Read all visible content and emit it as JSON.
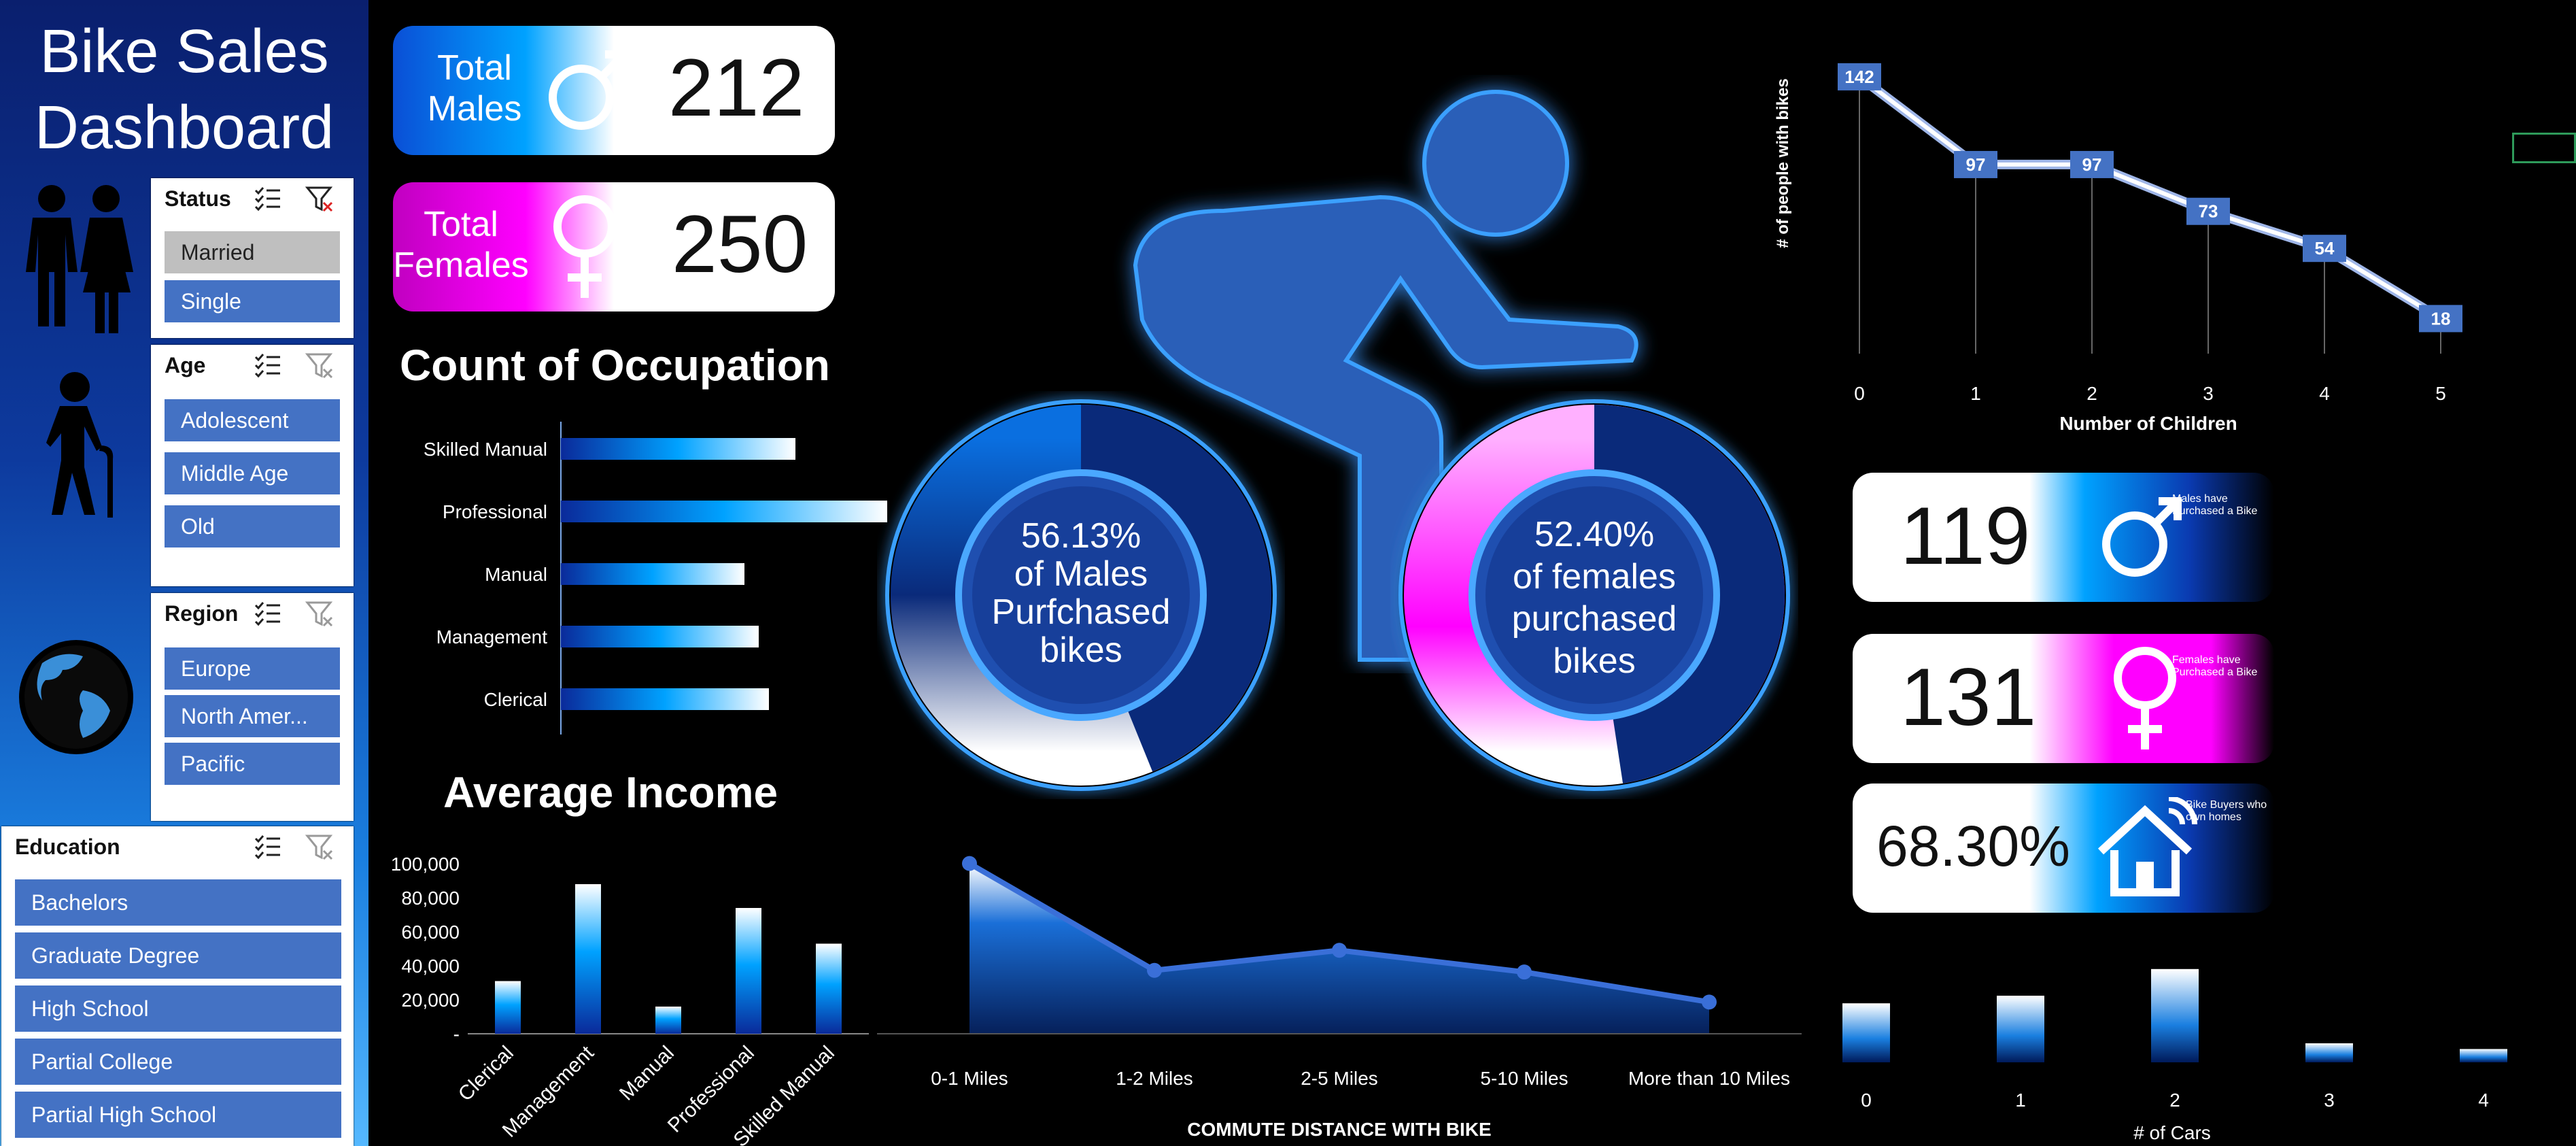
{
  "sidebar": {
    "title_line1": "Bike Sales",
    "title_line2": "Dashboard",
    "slicers": {
      "status": {
        "title": "Status",
        "items": [
          "Married",
          "Single"
        ]
      },
      "age": {
        "title": "Age",
        "items": [
          "Adolescent",
          "Middle Age",
          "Old"
        ]
      },
      "region": {
        "title": "Region",
        "items": [
          "Europe",
          "North Amer...",
          "Pacific"
        ]
      },
      "education": {
        "title": "Education",
        "items": [
          "Bachelors",
          "Graduate Degree",
          "High School",
          "Partial College",
          "Partial High School"
        ]
      }
    },
    "icons": [
      "couple-icon",
      "elderly-person-icon",
      "globe-icon"
    ]
  },
  "kpis": {
    "total_males": {
      "label_line1": "Total",
      "label_line2": "Males",
      "value": "212"
    },
    "total_females": {
      "label_line1": "Total",
      "label_line2": "Females",
      "value": "250"
    },
    "males_purchased": {
      "value": "119",
      "text_line1": "Males have",
      "text_line2": "Purchased a Bike"
    },
    "females_purchased": {
      "value": "131",
      "text_line1": "Females have",
      "text_line2": "Purchased a Bike"
    },
    "home_owners": {
      "value": "68.30%",
      "text_line1": "Bike Buyers who",
      "text_line2": "own homes"
    }
  },
  "donuts": {
    "males": {
      "pct": "56.13%",
      "line1": "of Males",
      "line2": "Purfchased",
      "line3": "bikes",
      "value": 56.13
    },
    "females": {
      "pct": "52.40%",
      "line1": "of females",
      "line2": "purchased",
      "line3": "bikes",
      "value": 52.4
    }
  },
  "colors": {
    "blue": "#00a2ff",
    "magenta": "#ff00ff",
    "navy": "#0a2a7a",
    "accent": "#4472c4"
  },
  "headings": {
    "occupation": "Count of  Occupation",
    "income": "Average Income"
  },
  "chart_data": [
    {
      "type": "bar",
      "orientation": "horizontal",
      "title": "Count of  Occupation",
      "categories": [
        "Skilled Manual",
        "Professional",
        "Manual",
        "Management",
        "Clerical"
      ],
      "values": [
        115,
        160,
        90,
        97,
        102
      ]
    },
    {
      "type": "bar",
      "title": "Average Income",
      "categories": [
        "Clerical",
        "Management",
        "Manual",
        "Professional",
        "Skilled Manual"
      ],
      "values": [
        31000,
        88000,
        16000,
        74000,
        53000
      ],
      "ylim": [
        0,
        100000
      ],
      "yticks": [
        "-",
        "20,000",
        "40,000",
        "60,000",
        "80,000",
        "100,000"
      ]
    },
    {
      "type": "area",
      "categories": [
        "0-1 Miles",
        "1-2 Miles",
        "2-5 Miles",
        "5-10 Miles",
        "More than 10 Miles"
      ],
      "values": [
        102,
        38,
        50,
        37,
        19
      ],
      "xlabel": "COMMUTE DISTANCE WITH BIKE",
      "ylim": [
        0,
        110
      ]
    },
    {
      "type": "line",
      "categories": [
        "0",
        "1",
        "2",
        "3",
        "4",
        "5"
      ],
      "values": [
        142,
        97,
        97,
        73,
        54,
        18
      ],
      "xlabel": "Number of Children",
      "ylabel": "# of people with bikes",
      "ylim": [
        0,
        150
      ]
    },
    {
      "type": "bar",
      "categories": [
        "0",
        "1",
        "2",
        "3",
        "4"
      ],
      "values": [
        31,
        35,
        49,
        10,
        7
      ],
      "xlabel": "# of Cars",
      "ylim": [
        0,
        50
      ]
    }
  ]
}
